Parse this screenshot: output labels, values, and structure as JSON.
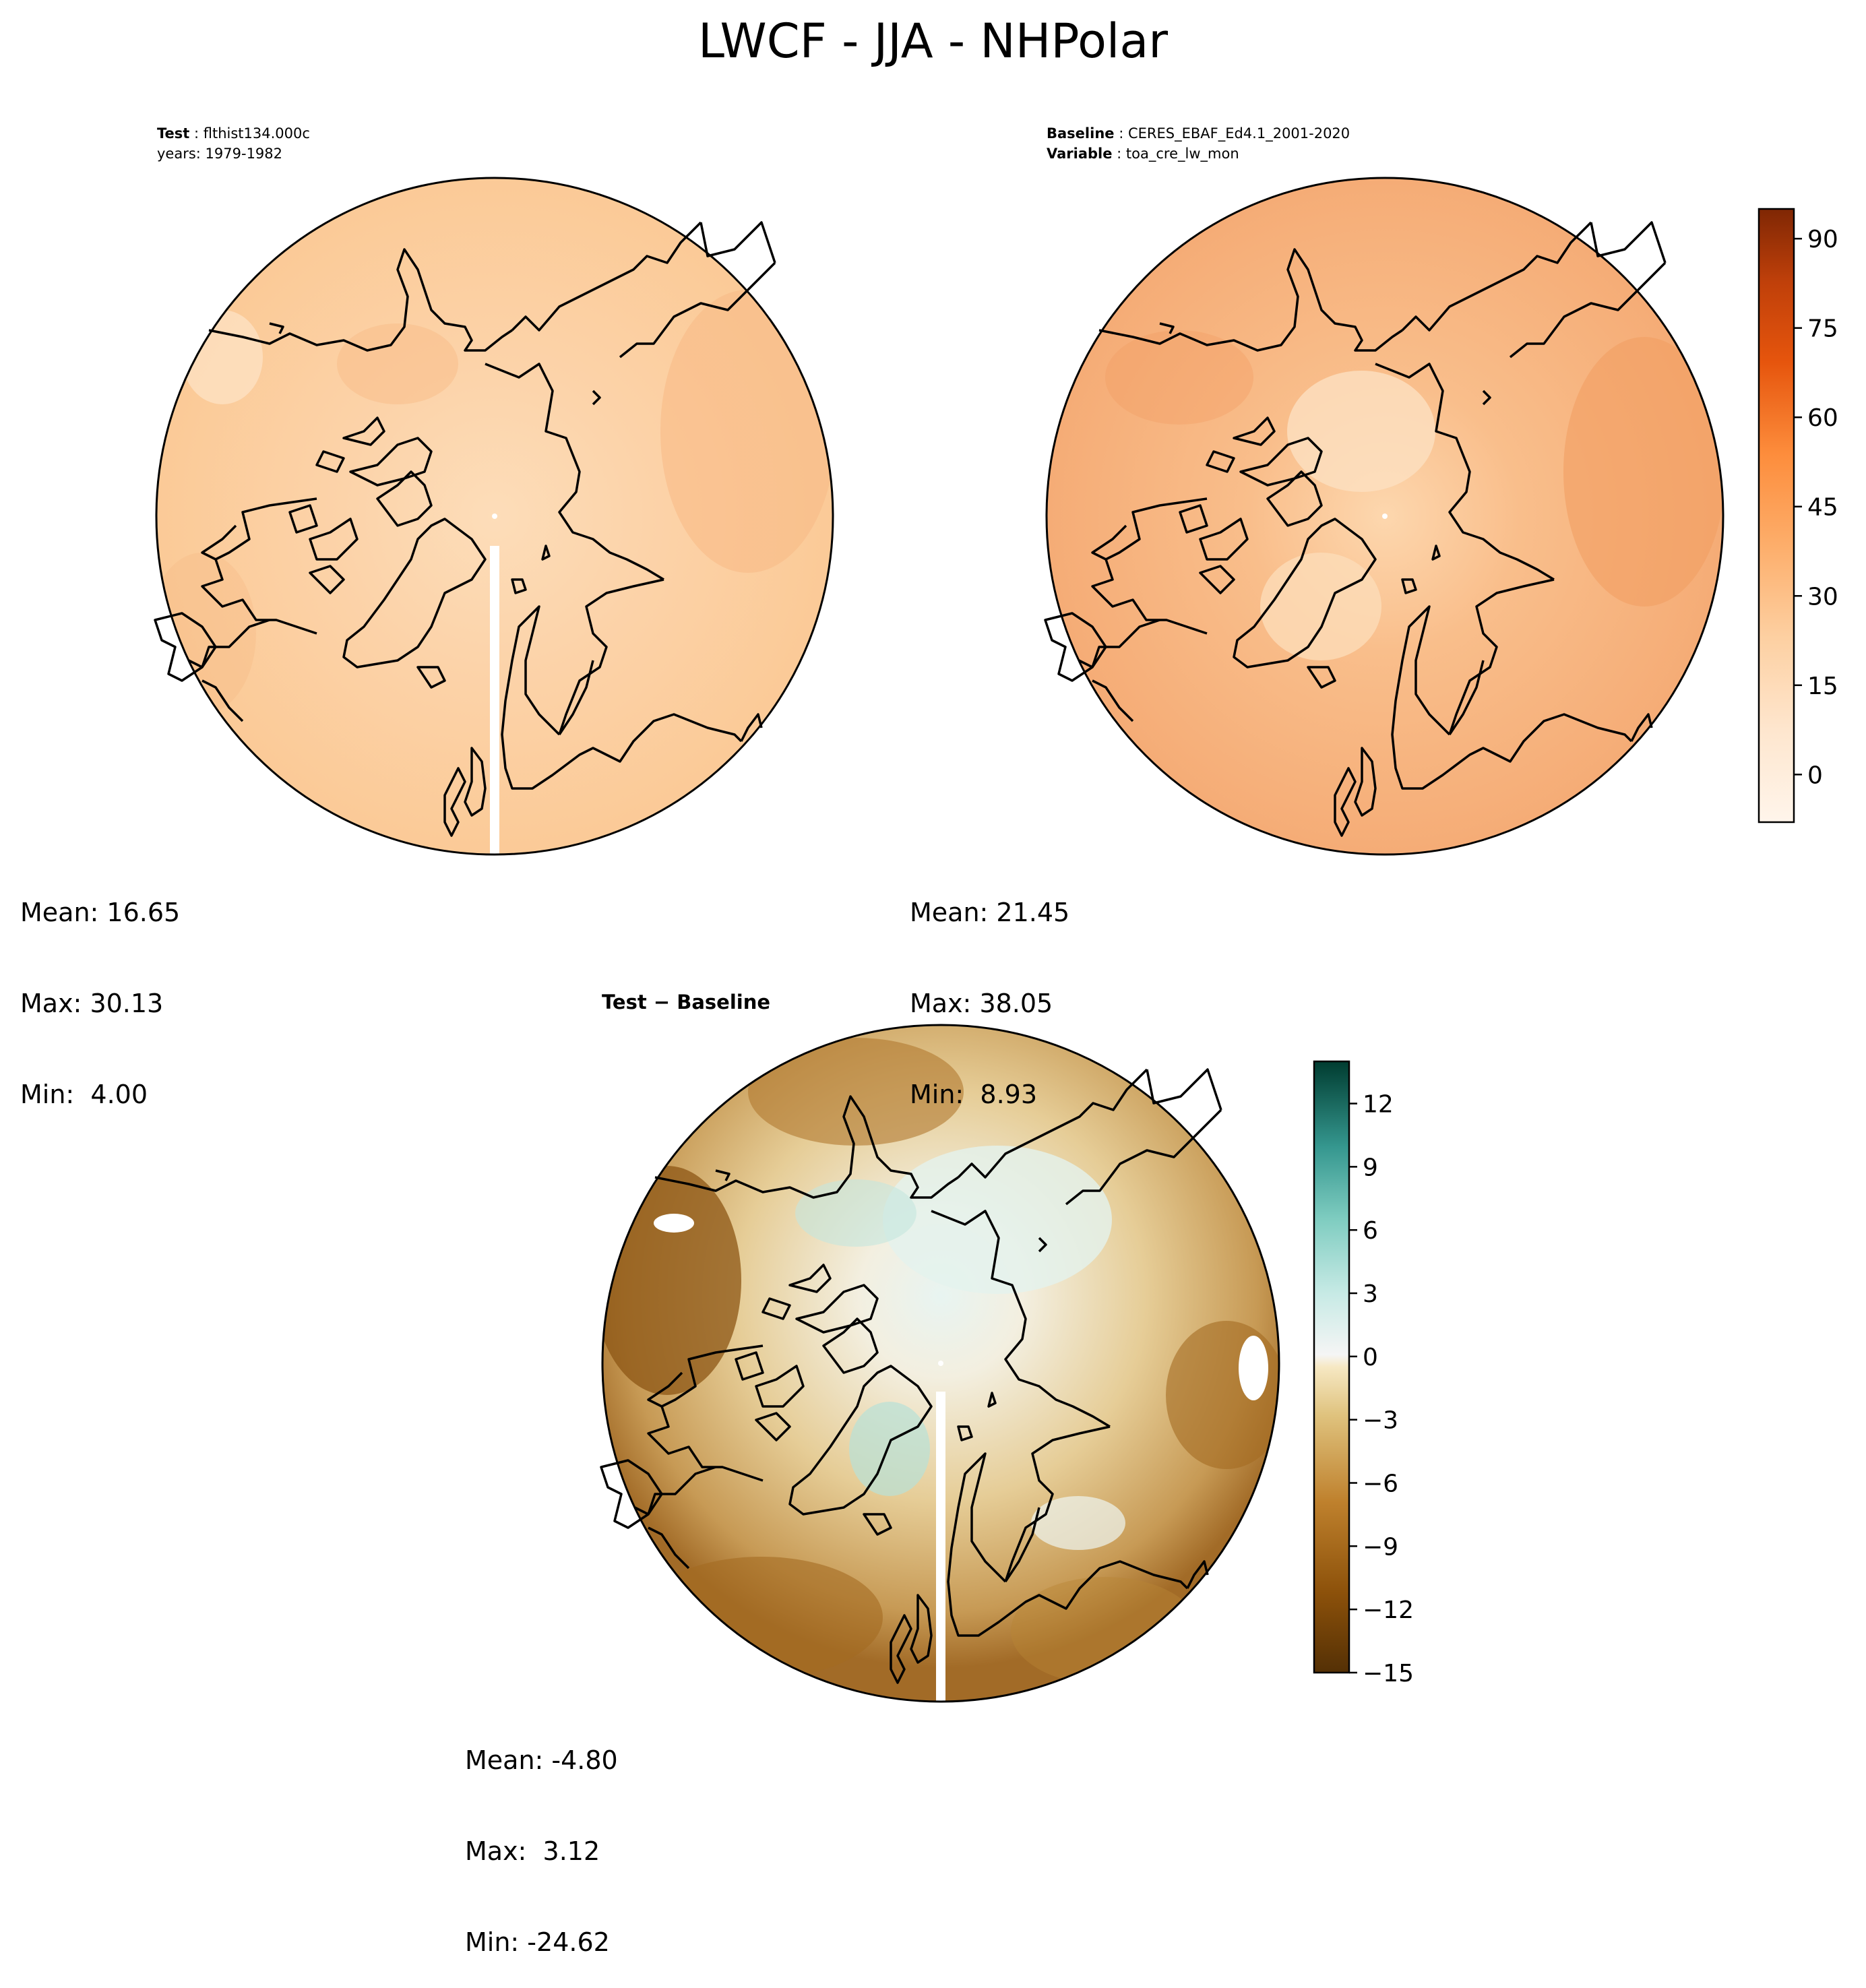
{
  "title": "LWCF - JJA - NHPolar",
  "panels": [
    {
      "meta_line1_key": "Test",
      "meta_line1_val": "flthist134.000c",
      "meta_line2": "years: 1979-1982",
      "stats": {
        "mean": "Mean: 16.65",
        "max": "Max: 30.13",
        "min": "Min:  4.00"
      }
    },
    {
      "meta_line1_key": "Baseline",
      "meta_line1_val": "CERES_EBAF_Ed4.1_2001-2020",
      "meta_line2_key": "Variable",
      "meta_line2_val": "toa_cre_lw_mon",
      "stats": {
        "mean": "Mean: 21.45",
        "max": "Max: 38.05",
        "min": "Min:  8.93"
      }
    },
    {
      "title": "Test − Baseline",
      "stats": {
        "mean": "Mean: -4.80",
        "max": "Max:  3.12",
        "min": "Min: -24.62"
      }
    }
  ],
  "chart_data": [
    {
      "type": "heatmap",
      "projection": "north polar stereographic",
      "region": "NHPolar",
      "variable": "LWCF",
      "season": "JJA",
      "case": "flthist134.000c",
      "years": "1979-1982",
      "mean": 16.65,
      "max": 30.13,
      "min": 4.0,
      "colormap": "Oranges",
      "colorbar": {
        "range": [
          -8,
          95
        ],
        "ticks": [
          "0",
          "15",
          "30",
          "45",
          "60",
          "75",
          "90"
        ]
      }
    },
    {
      "type": "heatmap",
      "projection": "north polar stereographic",
      "region": "NHPolar",
      "variable": "toa_cre_lw_mon",
      "season": "JJA",
      "case": "CERES_EBAF_Ed4.1_2001-2020",
      "mean": 21.45,
      "max": 38.05,
      "min": 8.93,
      "colormap": "Oranges",
      "colorbar": {
        "range": [
          -8,
          95
        ],
        "ticks": [
          "0",
          "15",
          "30",
          "45",
          "60",
          "75",
          "90"
        ]
      }
    },
    {
      "type": "heatmap",
      "projection": "north polar stereographic",
      "region": "NHPolar",
      "title": "Test − Baseline",
      "mean": -4.8,
      "max": 3.12,
      "min": -24.62,
      "colormap": "BrBG",
      "colorbar": {
        "range": [
          -15,
          14
        ],
        "ticks": [
          "−15",
          "−12",
          "−9",
          "−6",
          "−3",
          "0",
          "3",
          "6",
          "9",
          "12"
        ]
      }
    }
  ],
  "colors": {
    "ocean_test": "#fbcf9f",
    "ocean_base": "#f6b07c",
    "polar_test": "#fddbb6",
    "polar_base": "#fcd1a6",
    "diff_brown": "#a86e28",
    "diff_tan": "#e8cf9a",
    "diff_teal": "#9dd8cb"
  }
}
